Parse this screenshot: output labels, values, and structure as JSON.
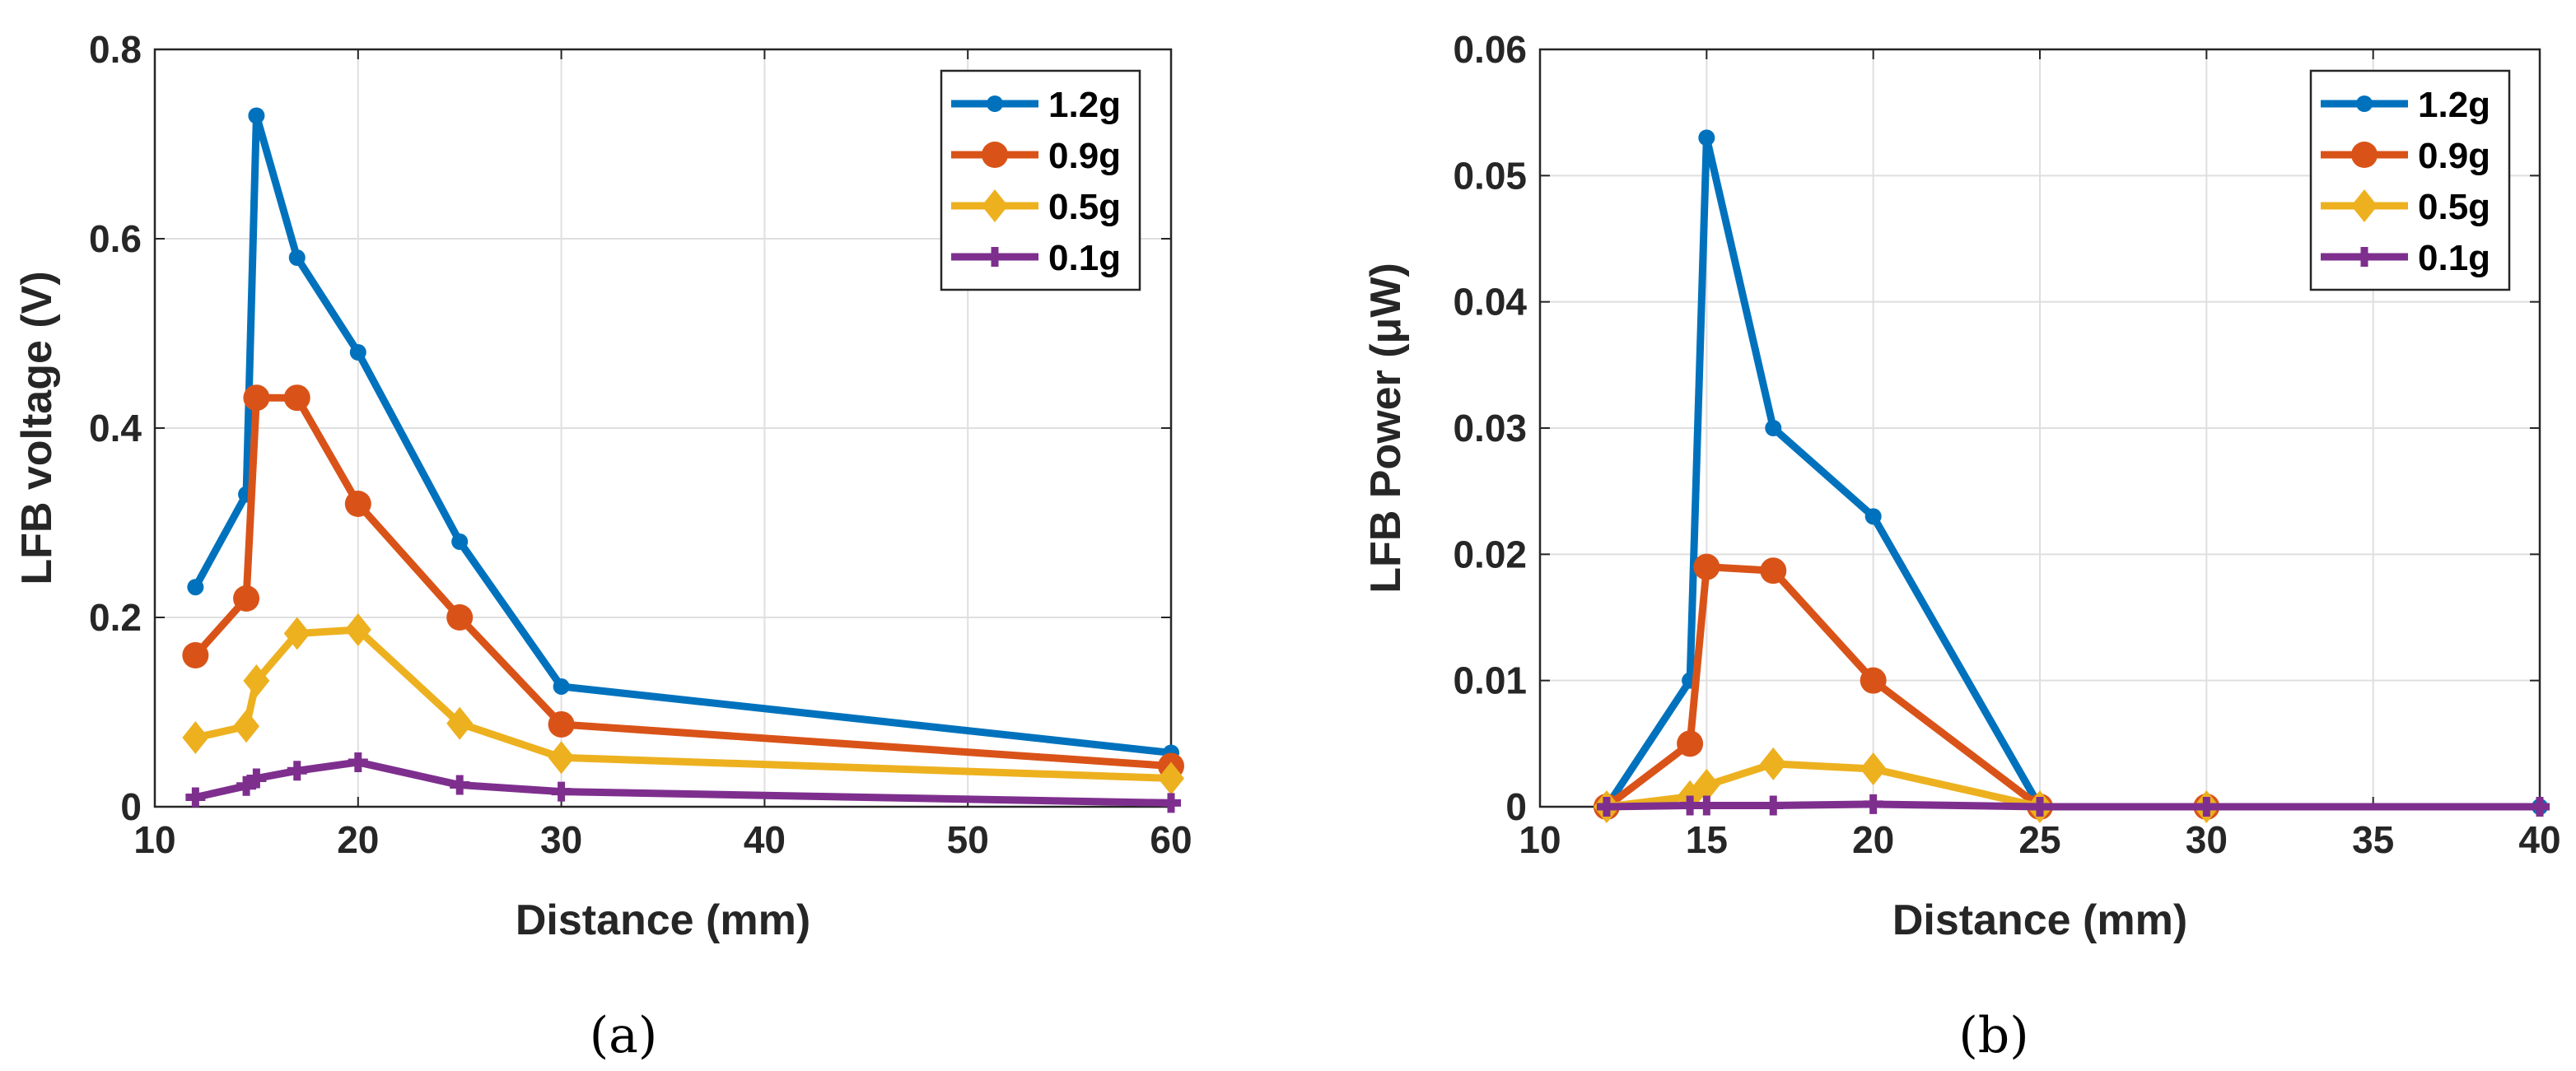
{
  "chart_data": [
    {
      "type": "line",
      "caption": "(a)",
      "xlabel": "Distance (mm)",
      "ylabel": "LFB voltage (V)",
      "xlim": [
        10,
        60
      ],
      "ylim": [
        0,
        0.8
      ],
      "xticks": [
        10,
        20,
        30,
        40,
        50,
        60
      ],
      "yticks": [
        0,
        0.2,
        0.4,
        0.6,
        0.8
      ],
      "xtick_labels": [
        "10",
        "20",
        "30",
        "40",
        "50",
        "60"
      ],
      "ytick_labels": [
        "0",
        "0.2",
        "0.4",
        "0.6",
        "0.8"
      ],
      "grid": true,
      "legend_position": "top-right",
      "series": [
        {
          "name": "1.2g",
          "marker": "dot",
          "color": "#0072BD",
          "x": [
            12,
            14.5,
            15,
            17,
            20,
            25,
            30,
            60
          ],
          "y": [
            0.232,
            0.33,
            0.73,
            0.58,
            0.48,
            0.28,
            0.127,
            0.057
          ]
        },
        {
          "name": "0.9g",
          "marker": "circle",
          "color": "#D95319",
          "x": [
            12,
            14.5,
            15,
            17,
            20,
            25,
            30,
            60
          ],
          "y": [
            0.16,
            0.22,
            0.432,
            0.432,
            0.32,
            0.2,
            0.087,
            0.043
          ]
        },
        {
          "name": "0.5g",
          "marker": "diamond",
          "color": "#EDB120",
          "x": [
            12,
            14.5,
            15,
            17,
            20,
            25,
            30,
            60
          ],
          "y": [
            0.073,
            0.085,
            0.133,
            0.183,
            0.187,
            0.088,
            0.052,
            0.03
          ]
        },
        {
          "name": "0.1g",
          "marker": "plus",
          "color": "#7E2F8E",
          "x": [
            12,
            14.5,
            15,
            17,
            20,
            25,
            30,
            60
          ],
          "y": [
            0.01,
            0.022,
            0.03,
            0.038,
            0.047,
            0.023,
            0.016,
            0.004
          ]
        }
      ]
    },
    {
      "type": "line",
      "caption": "(b)",
      "xlabel": "Distance (mm)",
      "ylabel": "LFB Power (μW)",
      "xlim": [
        10,
        40
      ],
      "ylim": [
        0,
        0.06
      ],
      "xticks": [
        10,
        15,
        20,
        25,
        30,
        35,
        40
      ],
      "yticks": [
        0,
        0.01,
        0.02,
        0.03,
        0.04,
        0.05,
        0.06
      ],
      "xtick_labels": [
        "10",
        "15",
        "20",
        "25",
        "30",
        "35",
        "40"
      ],
      "ytick_labels": [
        "0",
        "0.01",
        "0.02",
        "0.03",
        "0.04",
        "0.05",
        "0.06"
      ],
      "grid": true,
      "legend_position": "top-right",
      "series": [
        {
          "name": "1.2g",
          "marker": "dot",
          "color": "#0072BD",
          "x": [
            12,
            14.5,
            15,
            17,
            20,
            25,
            30,
            40
          ],
          "y": [
            0.0,
            0.01,
            0.053,
            0.03,
            0.023,
            0.0,
            0.0,
            0.0
          ]
        },
        {
          "name": "0.9g",
          "marker": "circle",
          "color": "#D95319",
          "x": [
            12,
            14.5,
            15,
            17,
            20,
            25,
            30
          ],
          "y": [
            0.0,
            0.005,
            0.019,
            0.0187,
            0.01,
            0.0,
            0.0
          ]
        },
        {
          "name": "0.5g",
          "marker": "diamond",
          "color": "#EDB120",
          "x": [
            12,
            14.5,
            15,
            17,
            20,
            25,
            30
          ],
          "y": [
            0.0,
            0.0008,
            0.0017,
            0.0034,
            0.003,
            0.0,
            0.0
          ]
        },
        {
          "name": "0.1g",
          "marker": "plus",
          "color": "#7E2F8E",
          "x": [
            12,
            14.5,
            15,
            17,
            20,
            25,
            30,
            40
          ],
          "y": [
            0.0,
            0.0001,
            0.0001,
            0.0001,
            0.0002,
            0.0,
            0.0,
            0.0
          ]
        }
      ]
    }
  ]
}
